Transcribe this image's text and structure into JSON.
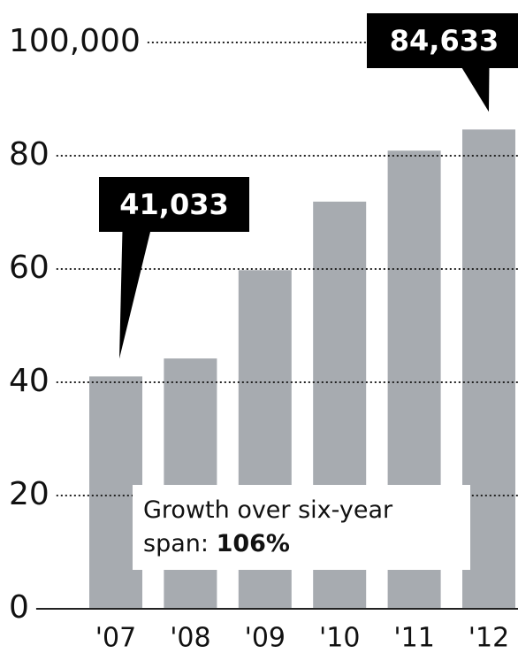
{
  "chart_data": {
    "type": "bar",
    "categories": [
      "'07",
      "'08",
      "'09",
      "'10",
      "'11",
      "'12"
    ],
    "values": [
      41033,
      44200,
      59800,
      71900,
      80900,
      84633
    ],
    "value_labels": [
      "41,033",
      null,
      null,
      null,
      null,
      "84,633"
    ],
    "color": "#a7abb0",
    "ylim": [
      0,
      100000
    ],
    "yticks": [
      0,
      {
        "value": 20000,
        "label": "20"
      },
      {
        "value": 40000,
        "label": "40"
      },
      {
        "value": 60000,
        "label": "60"
      },
      {
        "value": 80000,
        "label": "80"
      },
      {
        "value": 100000,
        "label": "100,000"
      }
    ],
    "grid": true,
    "annotation": "Growth over six-year span:",
    "annotation_value": "106%"
  }
}
